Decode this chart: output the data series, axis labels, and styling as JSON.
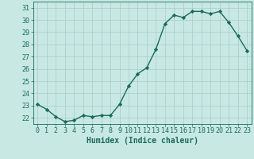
{
  "x": [
    0,
    1,
    2,
    3,
    4,
    5,
    6,
    7,
    8,
    9,
    10,
    11,
    12,
    13,
    14,
    15,
    16,
    17,
    18,
    19,
    20,
    21,
    22,
    23
  ],
  "y": [
    23.1,
    22.7,
    22.1,
    21.7,
    21.8,
    22.2,
    22.1,
    22.2,
    22.2,
    23.1,
    24.6,
    25.6,
    26.1,
    27.6,
    29.7,
    30.4,
    30.2,
    30.7,
    30.7,
    30.5,
    30.7,
    29.8,
    28.7,
    27.5
  ],
  "line_color": "#1a6b5a",
  "marker": "D",
  "marker_size": 2.2,
  "background_color": "#c8e8e4",
  "grid_color": "#a8ccc8",
  "xlabel": "Humidex (Indice chaleur)",
  "xlim": [
    -0.5,
    23.5
  ],
  "ylim": [
    21.5,
    31.5
  ],
  "yticks": [
    22,
    23,
    24,
    25,
    26,
    27,
    28,
    29,
    30,
    31
  ],
  "xticks": [
    0,
    1,
    2,
    3,
    4,
    5,
    6,
    7,
    8,
    9,
    10,
    11,
    12,
    13,
    14,
    15,
    16,
    17,
    18,
    19,
    20,
    21,
    22,
    23
  ],
  "text_color": "#1a6b5a",
  "xlabel_fontsize": 7,
  "tick_fontsize": 6,
  "line_width": 1.0
}
